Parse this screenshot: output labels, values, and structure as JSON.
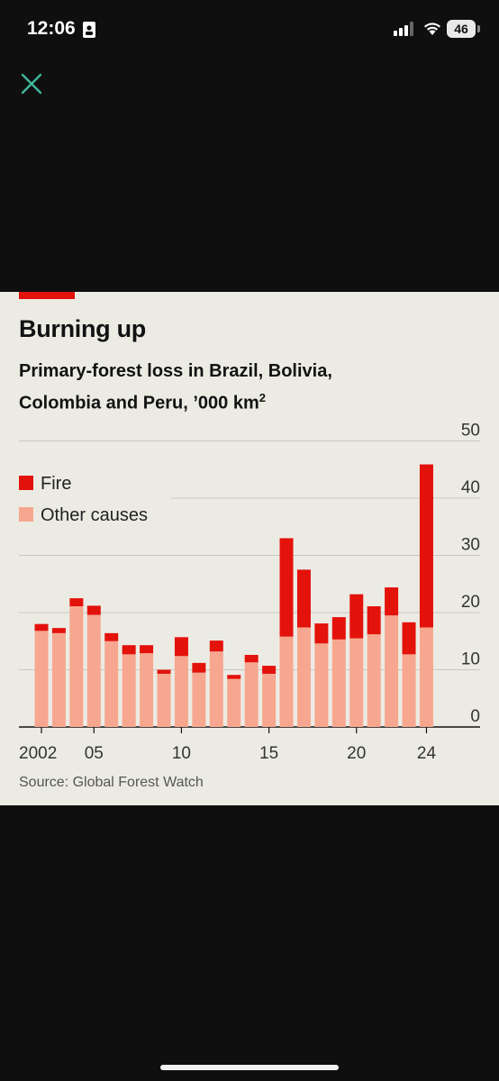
{
  "status_bar": {
    "time": "12:06",
    "battery": "46",
    "icons": [
      "id-card-icon",
      "signal-icon",
      "wifi-icon",
      "battery-icon"
    ]
  },
  "close_icon": {
    "name": "close-icon",
    "color": "#3fb89a"
  },
  "chart_data": {
    "type": "bar",
    "stacked": true,
    "title": "Burning up",
    "subtitle_line1": "Primary-forest loss in Brazil, Bolivia,",
    "subtitle_line2": "Colombia and Peru, ’000 km",
    "subtitle_sup": "2",
    "source": "Source: Global Forest Watch",
    "x": [
      2002,
      2003,
      2004,
      2005,
      2006,
      2007,
      2008,
      2009,
      2010,
      2011,
      2012,
      2013,
      2014,
      2015,
      2016,
      2017,
      2018,
      2019,
      2020,
      2021,
      2022,
      2023,
      2024
    ],
    "x_tick_labels": [
      {
        "year": 2002,
        "label": "2002"
      },
      {
        "year": 2005,
        "label": "05"
      },
      {
        "year": 2010,
        "label": "10"
      },
      {
        "year": 2015,
        "label": "15"
      },
      {
        "year": 2020,
        "label": "20"
      },
      {
        "year": 2024,
        "label": "24"
      }
    ],
    "y_ticks": [
      0,
      10,
      20,
      30,
      40,
      50
    ],
    "ylim": [
      0,
      50
    ],
    "grid": true,
    "legend_position": "top-left",
    "series": [
      {
        "name": "Other causes",
        "color": "#f7a78f",
        "values": [
          16.8,
          16.4,
          21.1,
          19.6,
          15.0,
          12.7,
          12.9,
          9.3,
          12.4,
          9.5,
          13.2,
          8.4,
          11.3,
          9.3,
          15.8,
          17.4,
          14.6,
          15.3,
          15.5,
          16.2,
          19.5,
          12.7,
          17.4
        ]
      },
      {
        "name": "Fire",
        "color": "#e3120b",
        "values": [
          1.2,
          0.9,
          1.4,
          1.6,
          1.4,
          1.6,
          1.4,
          0.7,
          3.3,
          1.7,
          1.9,
          0.7,
          1.3,
          1.4,
          17.2,
          10.1,
          3.5,
          3.9,
          7.7,
          4.9,
          4.9,
          5.6,
          28.5
        ]
      }
    ]
  }
}
